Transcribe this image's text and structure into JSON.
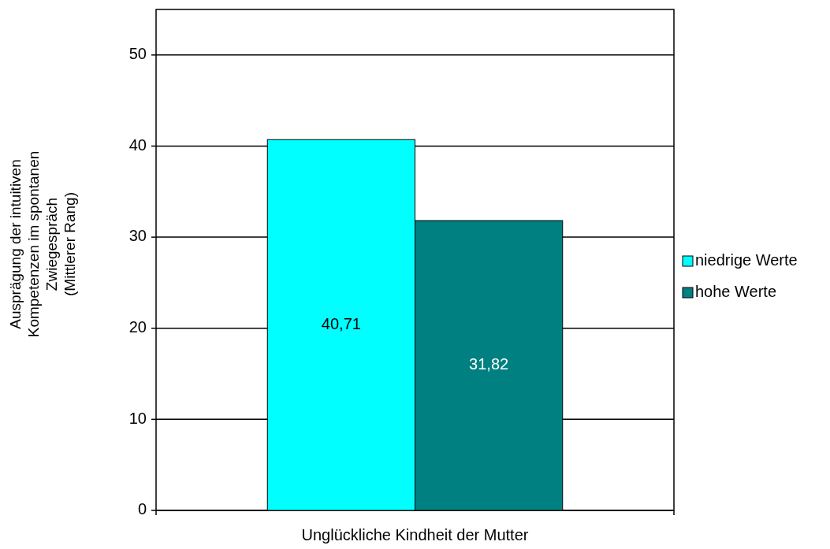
{
  "chart_data": {
    "type": "bar",
    "categories": [
      "Unglückliche Kindheit der Mutter"
    ],
    "ylabel": "Ausprägung der intuitiven\nKompetenzen im spontanen\nZwiegespräch\n(Mittlerer Rang)",
    "series": [
      {
        "name": "niedrige Werte",
        "color": "#00ffff",
        "values": [
          40.71
        ],
        "value_labels": [
          "40,71"
        ]
      },
      {
        "name": "hohe Werte",
        "color": "#008080",
        "values": [
          31.82
        ],
        "value_labels": [
          "31,82"
        ]
      }
    ],
    "ylim": [
      0,
      55
    ],
    "yticks": [
      0,
      10,
      20,
      30,
      40,
      50
    ],
    "grid": "y",
    "legend": "right"
  }
}
